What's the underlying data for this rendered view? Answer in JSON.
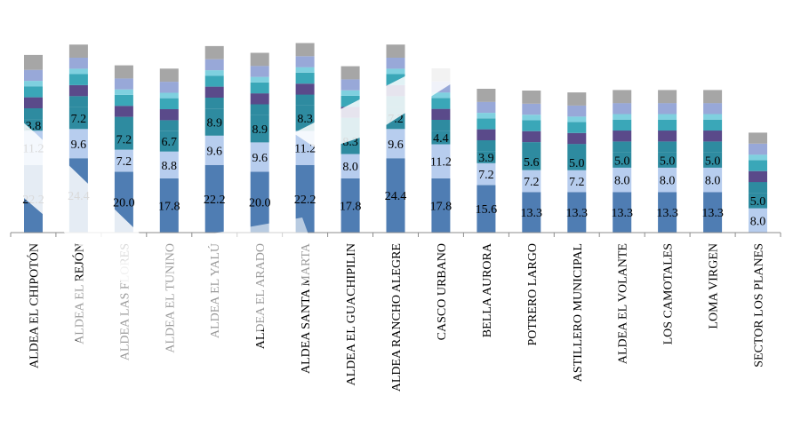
{
  "chart_data": {
    "type": "bar",
    "stacked": true,
    "title": "",
    "xlabel": "",
    "ylabel": "",
    "categories": [
      "ALDEA EL CHIPOTÓN",
      "ALDEA EL REJÓN",
      "ALDEA LAS FLORES",
      "ALDEA EL TUNINO",
      "ALDEA EL YALÚ",
      "ALDEA EL ARADO",
      "ALDEA SANTA MARTA",
      "ALDEA EL GUACHIPILIN",
      "ALDEA RANCHO ALEGRE",
      "CASCO URBANO",
      "BELLA AURORA",
      "POTRERO LARGO",
      "ASTILLERO MUNICIPAL",
      "ALDEA EL VOLANTE",
      "LOS CAMOTALES",
      "LOMA VIRGEN",
      "SECTOR LOS PLANES"
    ],
    "series": [
      {
        "values": [
          22.2,
          24.4,
          20.0,
          17.8,
          22.2,
          20.0,
          22.2,
          17.8,
          24.4,
          17.8,
          15.6,
          13.3,
          13.3,
          13.3,
          13.3,
          13.3,
          0
        ]
      },
      {
        "values": [
          11.2,
          9.6,
          7.2,
          8.8,
          9.6,
          9.6,
          11.2,
          8.0,
          9.6,
          11.2,
          7.2,
          7.2,
          7.2,
          8.0,
          8.0,
          8.0,
          8.0
        ]
      },
      {
        "values": [
          3.8,
          7.2,
          7.2,
          6.7,
          8.9,
          8.9,
          8.3,
          8.3,
          7.2,
          4.4,
          3.9,
          5.6,
          5.0,
          5.0,
          5.0,
          5.0,
          5.0
        ]
      },
      {
        "values": [
          3.6,
          3.6,
          3.6,
          3.6,
          3.6,
          3.6,
          3.6,
          3.6,
          3.6,
          3.6,
          3.6,
          3.6,
          3.6,
          3.6,
          3.6,
          3.6,
          3.6
        ]
      },
      {
        "values": [
          3.6,
          3.6,
          3.6,
          3.6,
          3.6,
          3.6,
          3.6,
          3.6,
          3.6,
          3.6,
          3.6,
          3.6,
          3.6,
          3.6,
          3.6,
          3.6,
          3.6
        ]
      },
      {
        "values": [
          3.6,
          3.6,
          3.6,
          3.6,
          3.6,
          3.6,
          3.6,
          3.6,
          3.6,
          3.6,
          3.6,
          3.6,
          3.6,
          3.6,
          3.6,
          3.6,
          3.6
        ]
      },
      {
        "values": [
          1.8,
          1.8,
          1.8,
          1.8,
          1.8,
          1.8,
          1.8,
          1.8,
          1.8,
          1.8,
          1.8,
          1.8,
          1.8,
          1.8,
          1.8,
          1.8,
          1.8
        ]
      },
      {
        "values": [
          3.6,
          3.6,
          3.6,
          3.6,
          3.6,
          3.6,
          3.6,
          3.6,
          3.6,
          3.6,
          3.6,
          3.6,
          3.6,
          3.6,
          3.6,
          3.6,
          3.6
        ]
      },
      {
        "values": [
          4.9,
          4.3,
          4.3,
          4.3,
          4.3,
          4.3,
          4.3,
          4.3,
          4.3,
          4.3,
          4.3,
          4.3,
          4.3,
          4.3,
          4.3,
          4.3,
          3.6
        ]
      }
    ],
    "data_labels": [
      [
        "22.2",
        "24.4",
        "20.0",
        "17.8",
        "22.2",
        "20.0",
        "22.2",
        "17.8",
        "24.4",
        "17.8",
        "15.6",
        "13.3",
        "13.3",
        "13.3",
        "13.3",
        "13.3",
        ""
      ],
      [
        "11.2",
        "9.6",
        "7.2",
        "8.8",
        "9.6",
        "9.6",
        "11.2",
        "8.0",
        "9.6",
        "11.2",
        "7.2",
        "7.2",
        "7.2",
        "8.0",
        "8.0",
        "8.0",
        "8.0"
      ],
      [
        "3.8",
        "7.2",
        "7.2",
        "6.7",
        "8.9",
        "8.9",
        "8.3",
        "8.3",
        "7.2",
        "4.4",
        "3.9",
        "5.6",
        "5.0",
        "5.0",
        "5.0",
        "5.0",
        "5.0"
      ]
    ],
    "colors": [
      "#4f7db3",
      "#b7cdee",
      "#2e8ba0",
      "#5a4a8a",
      "#3aa7b8",
      "#7fd0df",
      "#98a8d8",
      "#a6a6a6"
    ],
    "ylim": [
      0,
      74
    ],
    "grid": false,
    "legend": "none"
  }
}
